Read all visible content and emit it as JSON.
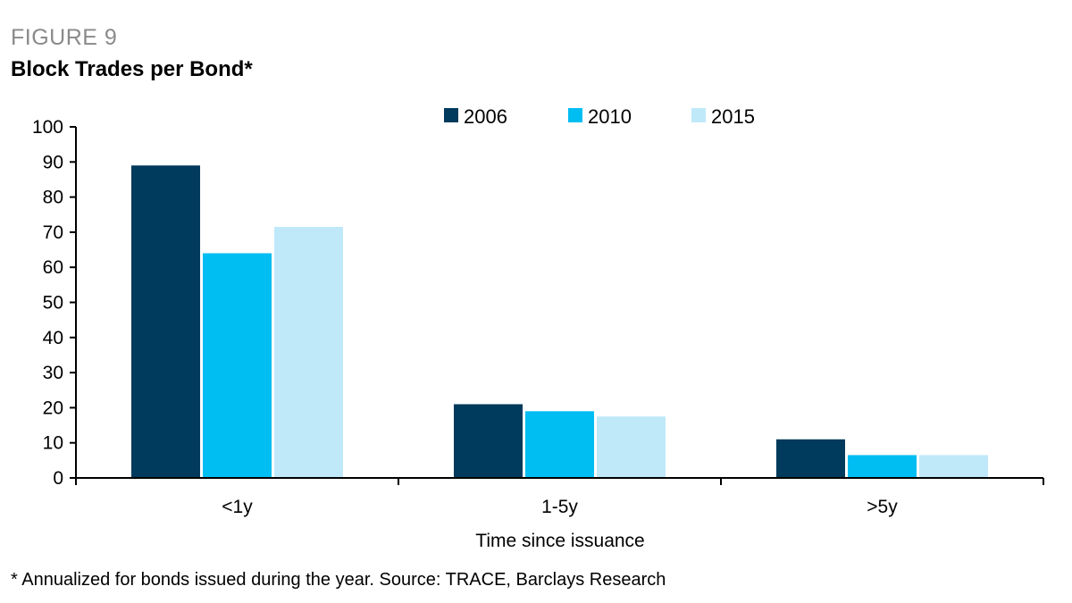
{
  "figure_label": "FIGURE 9",
  "title": "Block Trades per Bond*",
  "footnote": "* Annualized for bonds issued during the year. Source: TRACE, Barclays Research",
  "chart_data": {
    "type": "bar",
    "categories": [
      "<1y",
      "1-5y",
      ">5y"
    ],
    "series": [
      {
        "name": "2006",
        "color": "#003a5c",
        "values": [
          89,
          21,
          11
        ]
      },
      {
        "name": "2010",
        "color": "#00bdf2",
        "values": [
          64,
          19,
          6.5
        ]
      },
      {
        "name": "2015",
        "color": "#bfe9f9",
        "values": [
          71.5,
          17.5,
          6.5
        ]
      }
    ],
    "xlabel": "Time since issuance",
    "ylabel": "",
    "ylim": [
      0,
      100
    ],
    "yticks": [
      0,
      10,
      20,
      30,
      40,
      50,
      60,
      70,
      80,
      90,
      100
    ],
    "grid": false,
    "legend_position": "top"
  }
}
